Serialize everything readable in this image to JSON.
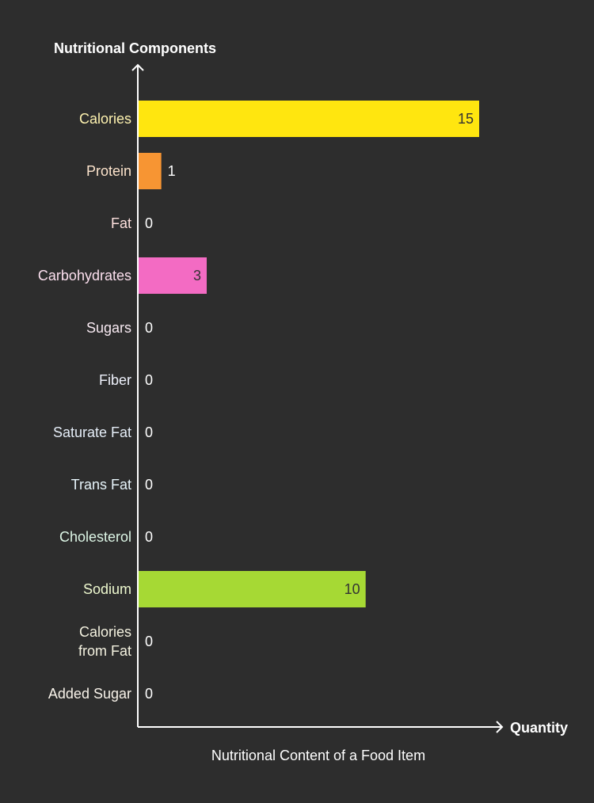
{
  "chart_data": {
    "type": "bar",
    "orientation": "horizontal",
    "title": "Nutritional Content of a Food Item",
    "xlabel": "Quantity",
    "ylabel": "Nutritional Components",
    "categories": [
      "Calories",
      "Protein",
      "Fat",
      "Carbohydrates",
      "Sugars",
      "Fiber",
      "Saturate Fat",
      "Trans Fat",
      "Cholesterol",
      "Sodium",
      "Calories from Fat",
      "Added Sugar"
    ],
    "values": [
      15,
      1,
      0,
      3,
      0,
      0,
      0,
      0,
      0,
      10,
      0,
      0
    ],
    "colors": [
      "#ffe60f",
      "#f79533",
      "#f3a6a4",
      "#f36bc3",
      "#f4e3ef",
      "#e8ecf8",
      "#dde8f5",
      "#e6f3fb",
      "#d8f3e0",
      "#a6d934",
      "#f3f0d8",
      "#f7f2e9"
    ],
    "label_colors": [
      "#fff3b0",
      "#fde4cc",
      "#fde0dd",
      "#fde0ef",
      "#f8eaf2",
      "#eef1fb",
      "#e6eef8",
      "#e8f5fb",
      "#ddf6e6",
      "#eef9cf",
      "#f4f2e0",
      "#f8f3ea"
    ],
    "xlim": [
      0,
      15
    ],
    "grid": false,
    "legend": "none"
  }
}
